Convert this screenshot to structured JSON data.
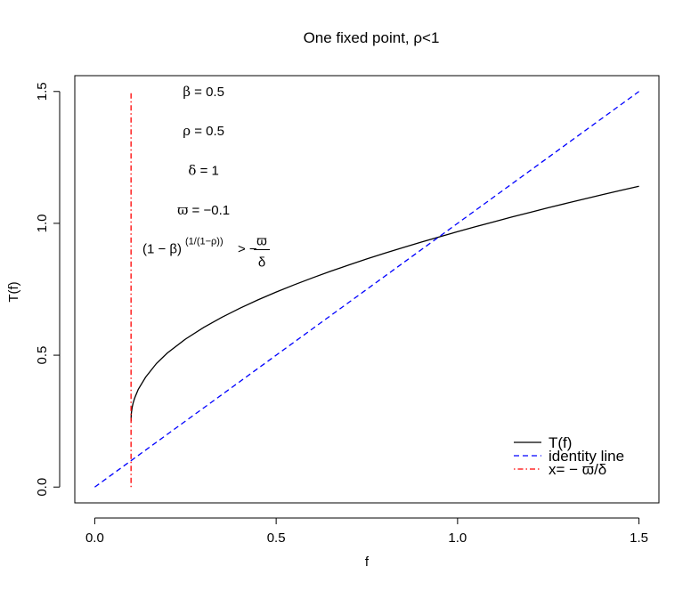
{
  "chart_data": {
    "type": "line",
    "title": "One fixed point, ρ<1",
    "xlabel": "f",
    "ylabel": "T(f)",
    "xlim": [
      -0.055,
      1.555
    ],
    "ylim": [
      -0.06,
      1.56
    ],
    "xticks": [
      0.0,
      0.5,
      1.0,
      1.5
    ],
    "xtick_labels": [
      "0.0",
      "0.5",
      "1.0",
      "1.5"
    ],
    "yticks": [
      0.0,
      0.5,
      1.0,
      1.5
    ],
    "ytick_labels": [
      "0.0",
      "0.5",
      "1.0",
      "1.5"
    ],
    "grid": false,
    "legend_position": "bottom-right",
    "parameters": {
      "beta": 0.5,
      "rho": 0.5,
      "delta": 1,
      "varpi": -0.1
    },
    "annotations": [
      {
        "sym": "β",
        "rest": " = 0.5",
        "x": 0.3,
        "y": 1.5
      },
      {
        "sym": "ρ",
        "rest": " = 0.5",
        "x": 0.3,
        "y": 1.35
      },
      {
        "sym": "δ",
        "rest": " = 1",
        "x": 0.3,
        "y": 1.2
      },
      {
        "sym": "ϖ",
        "rest": " = −0.1",
        "x": 0.3,
        "y": 1.05
      }
    ],
    "condition": {
      "lhs": "(1 − β)",
      "exponent": "(1/(1−ρ))",
      "rel": "> −",
      "numerator": "ϖ",
      "denominator": "δ",
      "x": 0.3,
      "y": 0.9
    },
    "series": [
      {
        "name": "T(f)",
        "color": "#000000",
        "dash": "solid",
        "x": [
          0.1,
          0.1001,
          0.1005,
          0.101,
          0.103,
          0.106,
          0.11,
          0.12,
          0.14,
          0.17,
          0.2,
          0.25,
          0.3,
          0.35,
          0.4,
          0.45,
          0.5,
          0.55,
          0.6,
          0.65,
          0.7,
          0.75,
          0.8,
          0.85,
          0.9,
          0.95,
          1.0,
          1.05,
          1.1,
          1.15,
          1.2,
          1.25,
          1.3,
          1.35,
          1.4,
          1.45,
          1.5
        ],
        "y": [
          0.25,
          0.2601,
          0.2724,
          0.2816,
          0.3015,
          0.3199,
          0.3374,
          0.3707,
          0.4162,
          0.4686,
          0.5081,
          0.5611,
          0.6051,
          0.6434,
          0.6781,
          0.7099,
          0.7394,
          0.7671,
          0.7933,
          0.8183,
          0.842,
          0.8651,
          0.8871,
          0.9084,
          0.9289,
          0.9489,
          0.9684,
          0.9874,
          1.0058,
          1.0241,
          1.0416,
          1.0591,
          1.0761,
          1.0927,
          1.1091,
          1.1251,
          1.1408
        ]
      },
      {
        "name": "identity line",
        "color": "#0000ff",
        "dash": "dashed",
        "x": [
          0.0,
          1.5
        ],
        "y": [
          0.0,
          1.5
        ]
      },
      {
        "name": "x= − ϖ/δ",
        "color": "#ff0000",
        "dash": "dotdash",
        "x": [
          0.1,
          0.1
        ],
        "y": [
          0.0,
          1.5
        ]
      }
    ]
  }
}
